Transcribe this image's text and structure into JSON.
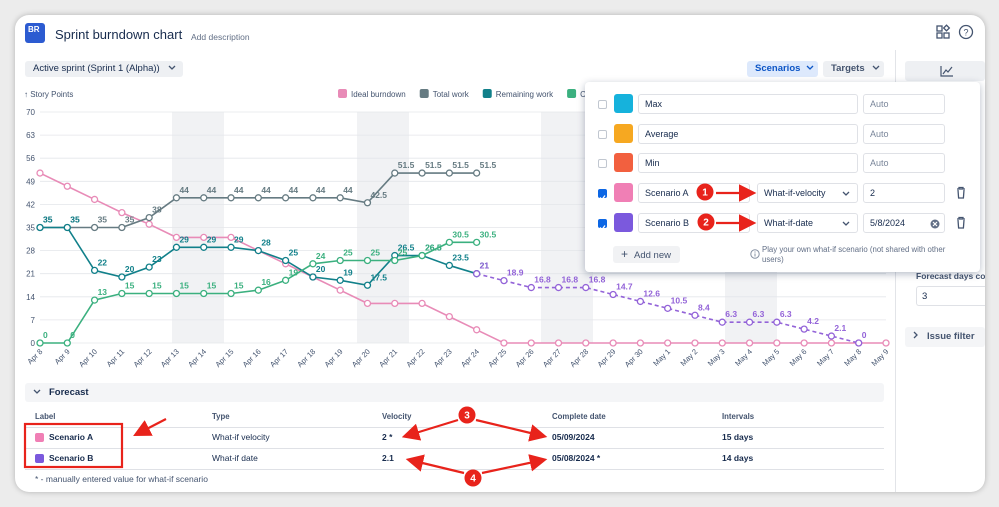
{
  "header": {
    "logo": "BR",
    "title": "Sprint burndown chart",
    "description": "Add description"
  },
  "toolbar": {
    "sprint": "Active sprint (Sprint 1 (Alpha))",
    "scenarios": "Scenarios",
    "targets": "Targets"
  },
  "chart_data": {
    "type": "line",
    "y_axis_label": "↑ Story Points",
    "categories": [
      "Apr 8",
      "Apr 9",
      "Apr 10",
      "Apr 11",
      "Apr 12",
      "Apr 13",
      "Apr 14",
      "Apr 15",
      "Apr 16",
      "Apr 17",
      "Apr 18",
      "Apr 19",
      "Apr 20",
      "Apr 21",
      "Apr 22",
      "Apr 23",
      "Apr 24",
      "Apr 25",
      "Apr 26",
      "Apr 27",
      "Apr 28",
      "Apr 29",
      "Apr 30",
      "May 1",
      "May 2",
      "May 3",
      "May 4",
      "May 5",
      "May 6",
      "May 7",
      "May 8",
      "May 9"
    ],
    "ylim": [
      0,
      70
    ],
    "yticks": [
      0,
      7,
      14,
      21,
      28,
      35,
      42,
      49,
      56,
      63,
      70
    ],
    "grid": true,
    "series": [
      {
        "name": "Ideal burndown",
        "color": "#e88bb7",
        "data_labels": false,
        "dashed": false,
        "values": [
          51.5,
          47.5,
          43.5,
          39.5,
          36,
          32,
          32,
          32,
          28,
          24,
          20,
          16,
          12,
          12,
          12,
          8,
          4,
          0,
          0,
          0,
          0,
          0,
          0,
          0,
          0,
          0,
          0,
          0,
          0,
          0,
          0,
          0
        ]
      },
      {
        "name": "Total work",
        "color": "#667b82",
        "data_labels": true,
        "dashed": false,
        "values": [
          35,
          35,
          35,
          35,
          38,
          44,
          44,
          44,
          44,
          44,
          44,
          44,
          42.5,
          51.5,
          51.5,
          51.5,
          51.5,
          null,
          null,
          null,
          null,
          null,
          null,
          null,
          null,
          null,
          null,
          null,
          null,
          null,
          null,
          null
        ]
      },
      {
        "name": "Remaining work",
        "color": "#11808a",
        "data_labels": true,
        "dashed": false,
        "values": [
          35,
          35,
          22,
          20,
          23,
          29,
          29,
          29,
          28,
          25,
          20,
          19,
          17.5,
          26.5,
          26.5,
          23.5,
          21,
          null,
          null,
          null,
          null,
          null,
          null,
          null,
          null,
          null,
          null,
          null,
          null,
          null,
          null,
          null
        ]
      },
      {
        "name": "Completed work",
        "color": "#3bb07f",
        "data_labels": true,
        "dashed": false,
        "values": [
          0,
          0,
          13,
          15,
          15,
          15,
          15,
          15,
          16,
          19,
          24,
          25,
          25,
          25,
          26.5,
          30.5,
          30.5,
          null,
          null,
          null,
          null,
          null,
          null,
          null,
          null,
          null,
          null,
          null,
          null,
          null,
          null,
          null
        ]
      },
      {
        "name": "Scenario B",
        "color": "#9363d8",
        "data_labels": true,
        "dashed": true,
        "values": [
          null,
          null,
          null,
          null,
          null,
          null,
          null,
          null,
          null,
          null,
          null,
          null,
          null,
          null,
          null,
          null,
          21,
          18.9,
          16.8,
          16.8,
          16.8,
          14.7,
          12.6,
          10.5,
          8.4,
          6.3,
          6.3,
          6.3,
          4.2,
          2.1,
          0,
          null
        ]
      }
    ]
  },
  "scenarios_panel": {
    "rows": [
      {
        "name": "Max",
        "color": "#16b2dc",
        "checked": false,
        "value": "Auto"
      },
      {
        "name": "Average",
        "color": "#f6a821",
        "checked": false,
        "value": "Auto"
      },
      {
        "name": "Min",
        "color": "#f2603f",
        "checked": false,
        "value": "Auto"
      },
      {
        "name": "Scenario A",
        "color": "#f07fb5",
        "checked": true,
        "mode": "What-if-velocity",
        "value": "2"
      },
      {
        "name": "Scenario B",
        "color": "#7b59dd",
        "checked": true,
        "mode": "What-if-date",
        "value": "5/8/2024"
      }
    ],
    "add_new": "Add new",
    "info": "Play your own what-if scenario (not shared with other users)"
  },
  "sidebar": {
    "forecast_days_label": "Forecast days count",
    "forecast_days": "3",
    "issue_filter": "Issue filter"
  },
  "forecast": {
    "title": "Forecast",
    "columns": [
      "Label",
      "Type",
      "Velocity",
      "Complete date",
      "Intervals"
    ],
    "rows": [
      {
        "color": "#f07fb5",
        "cells": [
          "Scenario A",
          "What-if velocity",
          "2 *",
          "05/09/2024",
          "15 days"
        ]
      },
      {
        "color": "#7b59dd",
        "cells": [
          "Scenario B",
          "What-if date",
          "2.1",
          "05/08/2024 *",
          "14 days"
        ]
      }
    ],
    "footnote": "* - manually entered value for what-if scenario"
  },
  "callouts": [
    "1",
    "2",
    "3",
    "4"
  ]
}
